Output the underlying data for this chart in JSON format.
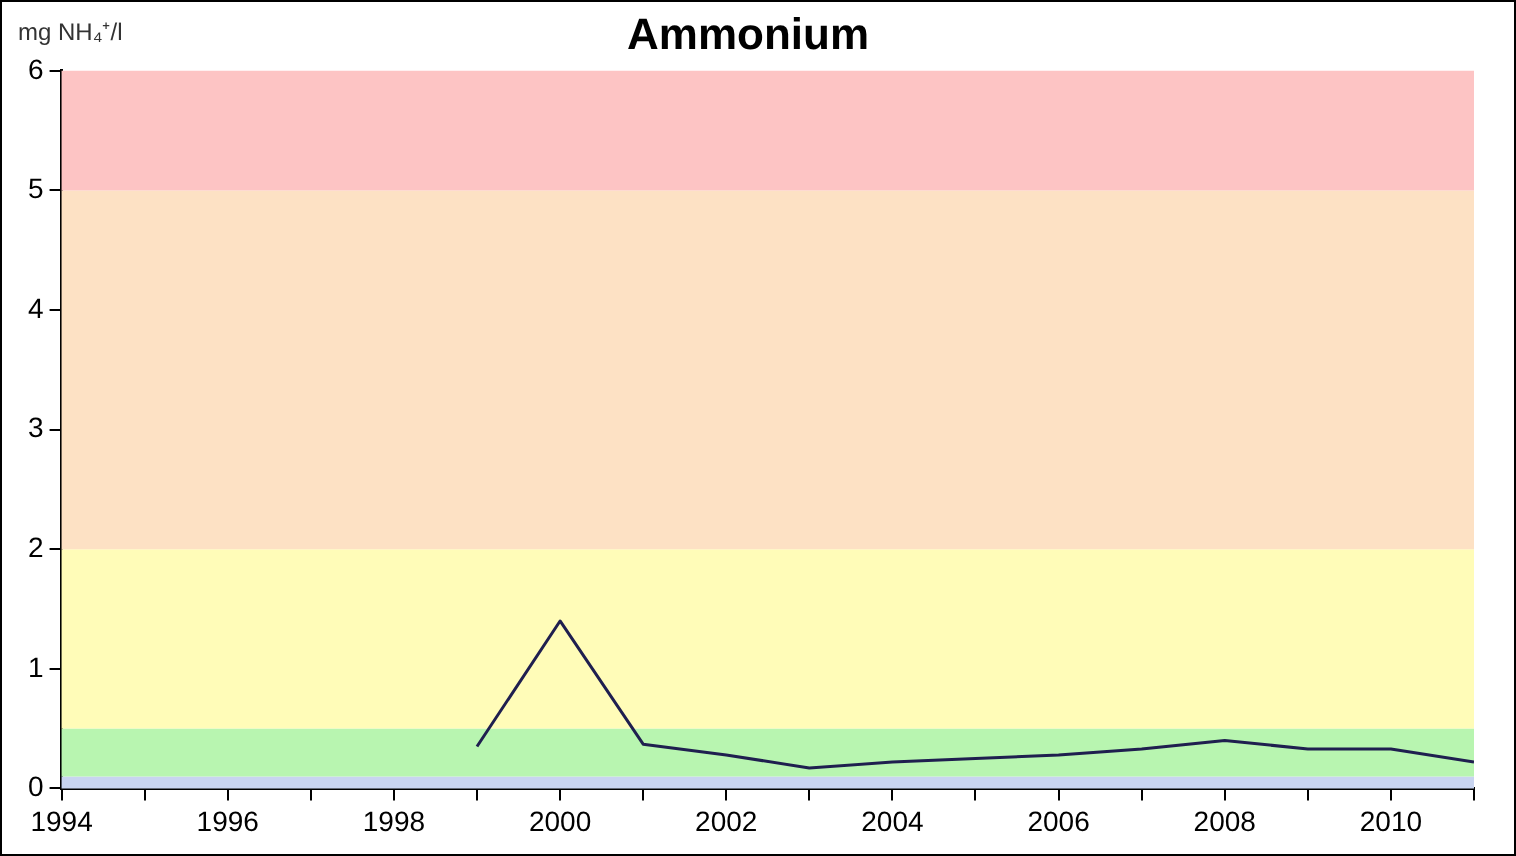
{
  "chart_data": {
    "type": "line",
    "title": "Ammonium",
    "ylabel": "mg NH₄⁺/l",
    "x": [
      1999,
      2000,
      2001,
      2002,
      2003,
      2004,
      2005,
      2006,
      2007,
      2008,
      2009,
      2010,
      2011
    ],
    "series": [
      {
        "color": "#1f1f4f",
        "values": [
          0.35,
          1.4,
          0.37,
          0.28,
          0.17,
          0.22,
          0.25,
          0.28,
          0.33,
          0.4,
          0.33,
          0.33,
          0.22
        ]
      }
    ],
    "xlim": [
      1994,
      2011
    ],
    "xticks": [
      1994,
      {
        "value": 1995,
        "label": null
      },
      1996,
      {
        "value": 1997,
        "label": null
      },
      1998,
      {
        "value": 1999,
        "label": null
      },
      2000,
      {
        "value": 2001,
        "label": null
      },
      2002,
      {
        "value": 2003,
        "label": null
      },
      2004,
      {
        "value": 2005,
        "label": null
      },
      2006,
      {
        "value": 2007,
        "label": null
      },
      2008,
      {
        "value": 2009,
        "label": null
      },
      2010,
      {
        "value": 2011,
        "label": null
      }
    ],
    "ylim": [
      0,
      6
    ],
    "yticks": [
      0,
      1,
      2,
      3,
      4,
      5,
      6
    ],
    "bands": [
      {
        "axis": "y",
        "from": 0,
        "to": 0.1,
        "color": "#c8d4f0"
      },
      {
        "axis": "y",
        "from": 0.1,
        "to": 0.5,
        "color": "#b8f5b0"
      },
      {
        "axis": "y",
        "from": 0.5,
        "to": 2,
        "color": "#fffcb8"
      },
      {
        "axis": "y",
        "from": 2,
        "to": 5,
        "color": "#fde1c4"
      },
      {
        "axis": "y",
        "from": 5,
        "to": 6,
        "color": "#fdc4c4"
      }
    ],
    "grid": false,
    "legend": false,
    "marker": "none",
    "line_style": "solid"
  }
}
